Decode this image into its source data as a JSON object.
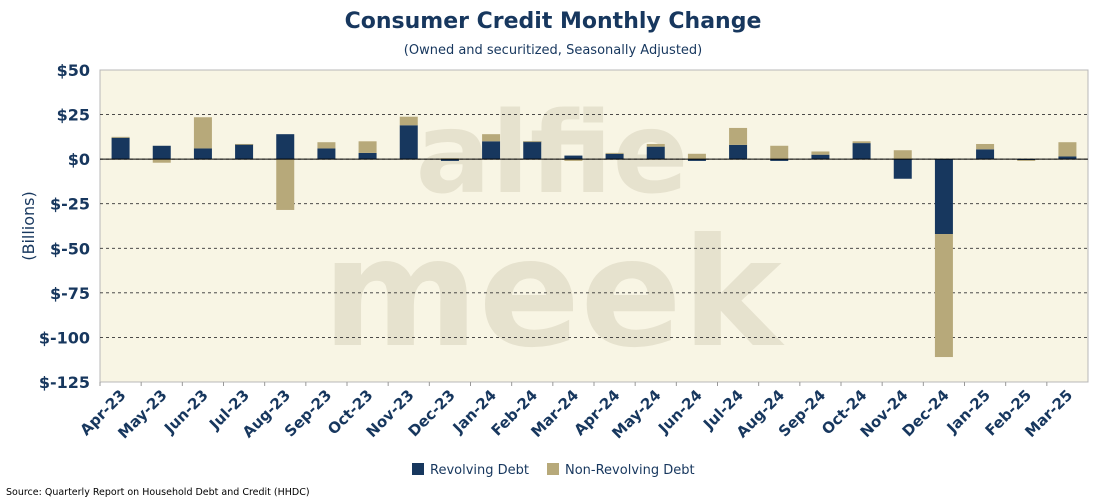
{
  "chart_data": {
    "type": "bar",
    "stacked": true,
    "title": "Consumer Credit Monthly Change",
    "subtitle": "(Owned and securitized, Seasonally Adjusted)",
    "xlabel": "",
    "ylabel": "(Billions)",
    "ylim": [
      -125,
      50
    ],
    "yticks": [
      50,
      25,
      0,
      -25,
      -50,
      -75,
      -100,
      -125
    ],
    "ytick_labels": [
      "$50",
      "$25",
      "$0",
      "$-25",
      "$-50",
      "$-75",
      "$-100",
      "$-125"
    ],
    "grid": "horizontal dashed",
    "legend_position": "bottom-center",
    "categories": [
      "Apr-23",
      "May-23",
      "Jun-23",
      "Jul-23",
      "Aug-23",
      "Sep-23",
      "Oct-23",
      "Nov-23",
      "Dec-23",
      "Jan-24",
      "Feb-24",
      "Mar-24",
      "Apr-24",
      "May-24",
      "Jun-24",
      "Jul-24",
      "Aug-24",
      "Sep-24",
      "Oct-24",
      "Nov-24",
      "Dec-24",
      "Jan-25",
      "Feb-25",
      "Mar-25"
    ],
    "series": [
      {
        "name": "Revolving Debt",
        "color": "#17375e",
        "values": [
          12,
          7.5,
          6,
          8.5,
          14,
          6,
          3.5,
          19,
          -1,
          10,
          10,
          2,
          3,
          7,
          -1,
          8,
          -1,
          2.5,
          9,
          -11,
          -42,
          5.5,
          -0.5,
          1.5
        ]
      },
      {
        "name": "Non-Revolving Debt",
        "color": "#b7a97a",
        "values": [
          0.5,
          -2,
          17.5,
          0,
          -28.5,
          3.5,
          6.5,
          4.8,
          0.5,
          4,
          0,
          -1,
          0.5,
          1.5,
          3,
          9.5,
          7.5,
          1.8,
          1,
          5,
          -69,
          3,
          -0.5,
          8
        ]
      }
    ],
    "watermark": [
      "alfie",
      "meek"
    ],
    "source": "Source: Quarterly Report on Household Debt and Credit (HHDC)"
  }
}
